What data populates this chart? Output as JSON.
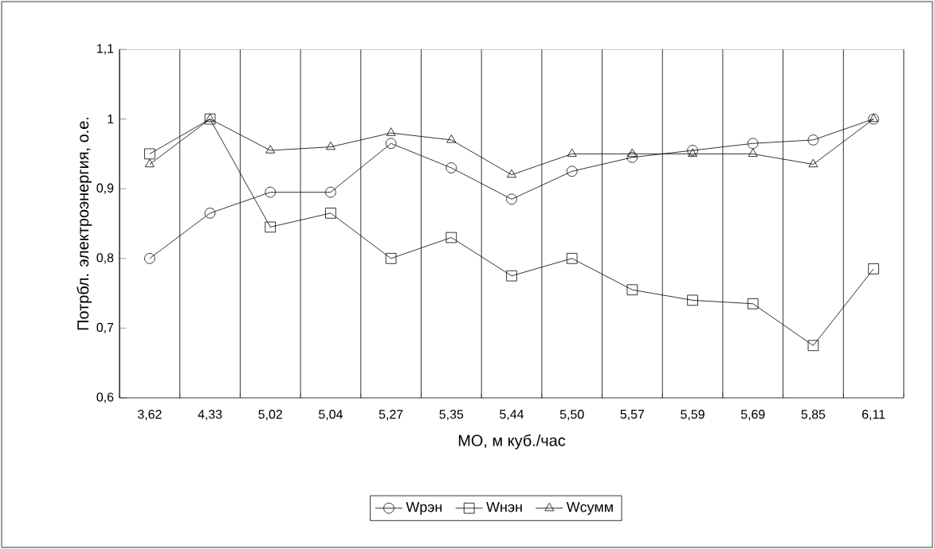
{
  "chart_data": {
    "type": "line",
    "xlabel": "МО, м куб./час",
    "ylabel": "Потрбл. электроэнергия, о.е.",
    "categories": [
      "3,62",
      "4,33",
      "5,02",
      "5,04",
      "5,27",
      "5,35",
      "5,44",
      "5,50",
      "5,57",
      "5,59",
      "5,69",
      "5,85",
      "6,11"
    ],
    "series": [
      {
        "name": "Wрэн",
        "color": "#000000",
        "marker": "circle",
        "values": [
          0.8,
          0.865,
          0.895,
          0.895,
          0.965,
          0.93,
          0.885,
          0.925,
          0.945,
          0.955,
          0.965,
          0.97,
          1.0
        ]
      },
      {
        "name": "Wнэн",
        "color": "#000000",
        "marker": "square",
        "values": [
          0.95,
          1.0,
          0.845,
          0.865,
          0.8,
          0.83,
          0.775,
          0.8,
          0.755,
          0.74,
          0.735,
          0.675,
          0.785
        ]
      },
      {
        "name": "Wсумм",
        "color": "#000000",
        "marker": "triangle",
        "values": [
          0.935,
          1.0,
          0.955,
          0.96,
          0.98,
          0.97,
          0.92,
          0.95,
          0.95,
          0.95,
          0.95,
          0.935,
          1.0
        ]
      }
    ],
    "ylim": [
      0.6,
      1.1
    ],
    "yticks": [
      {
        "value": 0.6,
        "label": "0,6"
      },
      {
        "value": 0.7,
        "label": "0,7"
      },
      {
        "value": 0.8,
        "label": "0,8"
      },
      {
        "value": 0.9,
        "label": "0,9"
      },
      1,
      {
        "value": 1.1,
        "label": "1,1"
      }
    ],
    "grid": "x",
    "legend": "bottom",
    "line_style": "solid"
  }
}
